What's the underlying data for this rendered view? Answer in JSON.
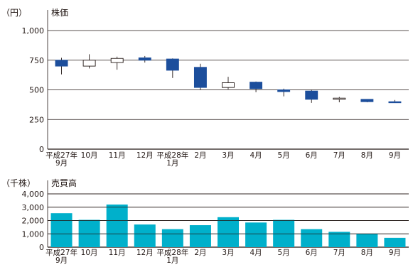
{
  "chart_data": [
    {
      "type": "candlestick",
      "unit_label": "（円）",
      "title": "株価",
      "ylim": [
        0,
        1000
      ],
      "yticks": [
        0,
        250,
        500,
        750,
        1000
      ],
      "ytick_labels": [
        "0",
        "250",
        "500",
        "750",
        "1,000"
      ],
      "grid": true,
      "categories": [
        [
          "平成27年",
          "9月"
        ],
        [
          "10月"
        ],
        [
          "11月"
        ],
        [
          "12月"
        ],
        [
          "平成28年",
          "1月"
        ],
        [
          "2月"
        ],
        [
          "3月"
        ],
        [
          "4月"
        ],
        [
          "5月"
        ],
        [
          "6月"
        ],
        [
          "7月"
        ],
        [
          "8月"
        ],
        [
          "9月"
        ]
      ],
      "ohlc": [
        {
          "open": 750,
          "high": 770,
          "low": 630,
          "close": 700
        },
        {
          "open": 700,
          "high": 800,
          "low": 680,
          "close": 750
        },
        {
          "open": 730,
          "high": 780,
          "low": 670,
          "close": 765
        },
        {
          "open": 770,
          "high": 785,
          "low": 730,
          "close": 750
        },
        {
          "open": 760,
          "high": 765,
          "low": 600,
          "close": 665
        },
        {
          "open": 690,
          "high": 720,
          "low": 500,
          "close": 520
        },
        {
          "open": 520,
          "high": 610,
          "low": 505,
          "close": 560
        },
        {
          "open": 565,
          "high": 570,
          "low": 480,
          "close": 510
        },
        {
          "open": 500,
          "high": 510,
          "low": 445,
          "close": 485
        },
        {
          "open": 490,
          "high": 500,
          "low": 390,
          "close": 420
        },
        {
          "open": 420,
          "high": 440,
          "low": 395,
          "close": 430
        },
        {
          "open": 420,
          "high": 420,
          "low": 395,
          "close": 400
        },
        {
          "open": 400,
          "high": 415,
          "low": 390,
          "close": 398
        }
      ],
      "colors": {
        "down": "#1c4e9c",
        "up": "#ffffff",
        "wick": "#231815"
      }
    },
    {
      "type": "bar",
      "unit_label": "（千株）",
      "title": "売買高",
      "ylim": [
        0,
        4000
      ],
      "yticks": [
        0,
        1000,
        2000,
        3000,
        4000
      ],
      "ytick_labels": [
        "0",
        "1,000",
        "2,000",
        "3,000",
        "4,000"
      ],
      "grid": true,
      "categories": [
        [
          "平成27年",
          "9月"
        ],
        [
          "10月"
        ],
        [
          "11月"
        ],
        [
          "12月"
        ],
        [
          "平成28年",
          "1月"
        ],
        [
          "2月"
        ],
        [
          "3月"
        ],
        [
          "4月"
        ],
        [
          "5月"
        ],
        [
          "6月"
        ],
        [
          "7月"
        ],
        [
          "8月"
        ],
        [
          "9月"
        ]
      ],
      "values": [
        2550,
        2050,
        3200,
        1700,
        1350,
        1650,
        2250,
        1850,
        2050,
        1350,
        1150,
        1000,
        700
      ],
      "colors": {
        "bar": "#00b0cb"
      }
    }
  ]
}
